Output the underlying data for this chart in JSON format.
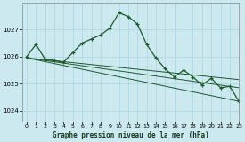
{
  "bg_color": "#cce9f0",
  "grid_color": "#aad4de",
  "line_color": "#1a5c2a",
  "title": "Graphe pression niveau de la mer (hPa)",
  "xlim": [
    -0.5,
    23
  ],
  "ylim": [
    1023.6,
    1028.0
  ],
  "yticks": [
    1024,
    1025,
    1026,
    1027
  ],
  "xticks": [
    0,
    1,
    2,
    3,
    4,
    5,
    6,
    7,
    8,
    9,
    10,
    11,
    12,
    13,
    14,
    15,
    16,
    17,
    18,
    19,
    20,
    21,
    22,
    23
  ],
  "trend1_x": [
    0,
    23
  ],
  "trend1_y": [
    1025.95,
    1024.35
  ],
  "trend2_x": [
    0,
    23
  ],
  "trend2_y": [
    1025.95,
    1024.85
  ],
  "trend3_x": [
    0,
    23
  ],
  "trend3_y": [
    1025.95,
    1025.15
  ],
  "series_main": {
    "x": [
      0,
      1,
      2,
      3,
      4,
      5,
      6,
      7,
      8,
      9,
      10,
      11,
      12,
      13,
      14,
      15,
      16,
      17,
      18,
      19,
      20,
      21,
      22,
      23
    ],
    "y": [
      1026.0,
      1026.45,
      1025.9,
      1025.85,
      1025.8,
      1026.15,
      1026.5,
      1026.65,
      1026.8,
      1027.05,
      1027.62,
      1027.48,
      1027.2,
      1026.45,
      1025.95,
      1025.55,
      1025.25,
      1025.5,
      1025.25,
      1024.95,
      1025.2,
      1024.85,
      1024.9,
      1024.35
    ]
  }
}
